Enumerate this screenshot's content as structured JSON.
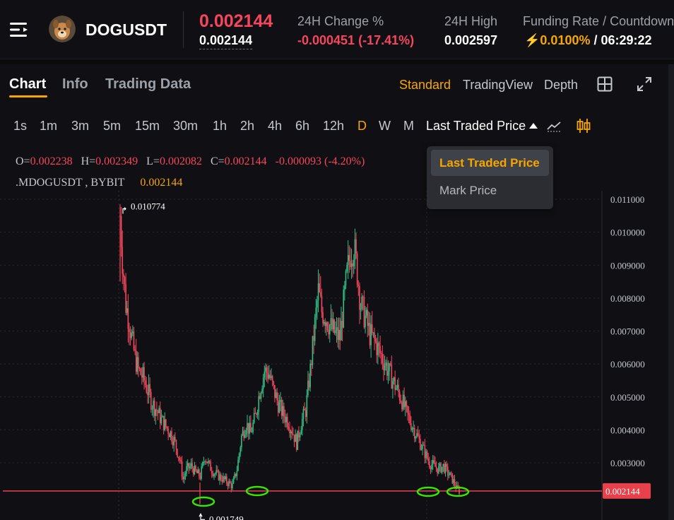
{
  "header": {
    "symbol": "DOGUSDT",
    "last_price": "0.002144",
    "mark_price": "0.002144",
    "change_label": "24H Change %",
    "change_value": "-0.000451 (-17.41%)",
    "high_label": "24H High",
    "high_value": "0.002597",
    "funding_label": "Funding Rate / Countdown",
    "funding_rate": "0.0100%",
    "countdown": "06:29:22"
  },
  "tabs": [
    {
      "label": "Chart",
      "active": true
    },
    {
      "label": "Info",
      "active": false
    },
    {
      "label": "Trading Data",
      "active": false
    }
  ],
  "views": [
    {
      "label": "Standard",
      "active": true
    },
    {
      "label": "TradingView",
      "active": false
    },
    {
      "label": "Depth",
      "active": false
    }
  ],
  "intervals": [
    {
      "label": "1s"
    },
    {
      "label": "1m"
    },
    {
      "label": "3m"
    },
    {
      "label": "5m"
    },
    {
      "label": "15m"
    },
    {
      "label": "30m"
    },
    {
      "label": "1h"
    },
    {
      "label": "2h"
    },
    {
      "label": "4h"
    },
    {
      "label": "6h"
    },
    {
      "label": "12h"
    },
    {
      "label": "D",
      "active": true
    },
    {
      "label": "W"
    },
    {
      "label": "M"
    }
  ],
  "price_type": {
    "selected": "Last Traded Price",
    "options": [
      "Last Traded Price",
      "Mark Price"
    ]
  },
  "ohlc": {
    "o_label": "O=",
    "o": "0.002238",
    "h_label": "H=",
    "h": "0.002349",
    "l_label": "L=",
    "l": "0.002082",
    "c_label": "C=",
    "c": "0.002144",
    "change": "-0.000093 (-4.20%)"
  },
  "symbol_line": {
    "name": ".MDOGUSDT , BYBIT",
    "value": "0.002144"
  },
  "colors": {
    "up": "#2ebd85",
    "down": "#f6465d",
    "accent": "#f7a600",
    "annotation": "#39e600"
  },
  "chart_data": {
    "type": "candlestick",
    "y_ticks": [
      "0.011000",
      "0.010000",
      "0.009000",
      "0.008000",
      "0.007000",
      "0.006000",
      "0.005000",
      "0.004000",
      "0.003000"
    ],
    "ylim": [
      0.0015,
      0.0118
    ],
    "high_marker": "0.010774",
    "low_marker": "0.001749",
    "current_price_label": "0.002144",
    "current_price": 0.002144,
    "close_path": [
      [
        0,
        0.0105
      ],
      [
        2,
        0.0092
      ],
      [
        5,
        0.0078
      ],
      [
        8,
        0.0073
      ],
      [
        10,
        0.0068
      ],
      [
        13,
        0.0062
      ],
      [
        16,
        0.0058
      ],
      [
        20,
        0.0056
      ],
      [
        24,
        0.0052
      ],
      [
        28,
        0.0048
      ],
      [
        32,
        0.0046
      ],
      [
        36,
        0.0043
      ],
      [
        40,
        0.0041
      ],
      [
        44,
        0.0039
      ],
      [
        48,
        0.0036
      ],
      [
        52,
        0.0031
      ],
      [
        55,
        0.0025
      ],
      [
        58,
        0.0028
      ],
      [
        62,
        0.0029
      ],
      [
        66,
        0.0027
      ],
      [
        70,
        0.0026
      ],
      [
        74,
        0.0032
      ],
      [
        78,
        0.0029
      ],
      [
        82,
        0.0027
      ],
      [
        86,
        0.0026
      ],
      [
        90,
        0.0025
      ],
      [
        94,
        0.0024
      ],
      [
        98,
        0.0023
      ],
      [
        102,
        0.0028
      ],
      [
        106,
        0.0038
      ],
      [
        110,
        0.0042
      ],
      [
        114,
        0.0039
      ],
      [
        118,
        0.0044
      ],
      [
        122,
        0.0052
      ],
      [
        126,
        0.0058
      ],
      [
        130,
        0.0057
      ],
      [
        134,
        0.0052
      ],
      [
        138,
        0.0048
      ],
      [
        142,
        0.0045
      ],
      [
        146,
        0.0043
      ],
      [
        150,
        0.004
      ],
      [
        154,
        0.0036
      ],
      [
        158,
        0.0042
      ],
      [
        162,
        0.0046
      ],
      [
        166,
        0.0058
      ],
      [
        170,
        0.0072
      ],
      [
        173,
        0.0082
      ],
      [
        176,
        0.0076
      ],
      [
        180,
        0.0074
      ],
      [
        184,
        0.0071
      ],
      [
        188,
        0.0069
      ],
      [
        192,
        0.0068
      ],
      [
        195,
        0.0078
      ],
      [
        198,
        0.0087
      ],
      [
        201,
        0.0094
      ],
      [
        204,
        0.0096
      ],
      [
        207,
        0.0088
      ],
      [
        210,
        0.0078
      ],
      [
        214,
        0.0074
      ],
      [
        218,
        0.0069
      ],
      [
        222,
        0.0067
      ],
      [
        226,
        0.0064
      ],
      [
        230,
        0.0061
      ],
      [
        234,
        0.0058
      ],
      [
        238,
        0.0055
      ],
      [
        242,
        0.0052
      ],
      [
        246,
        0.0049
      ],
      [
        250,
        0.0045
      ],
      [
        254,
        0.0042
      ],
      [
        258,
        0.0039
      ],
      [
        262,
        0.0036
      ],
      [
        266,
        0.0033
      ],
      [
        270,
        0.003
      ],
      [
        274,
        0.0029
      ],
      [
        278,
        0.0028
      ],
      [
        282,
        0.0029
      ],
      [
        286,
        0.0027
      ],
      [
        290,
        0.0025
      ],
      [
        294,
        0.0022
      ],
      [
        296,
        0.002144
      ]
    ]
  }
}
